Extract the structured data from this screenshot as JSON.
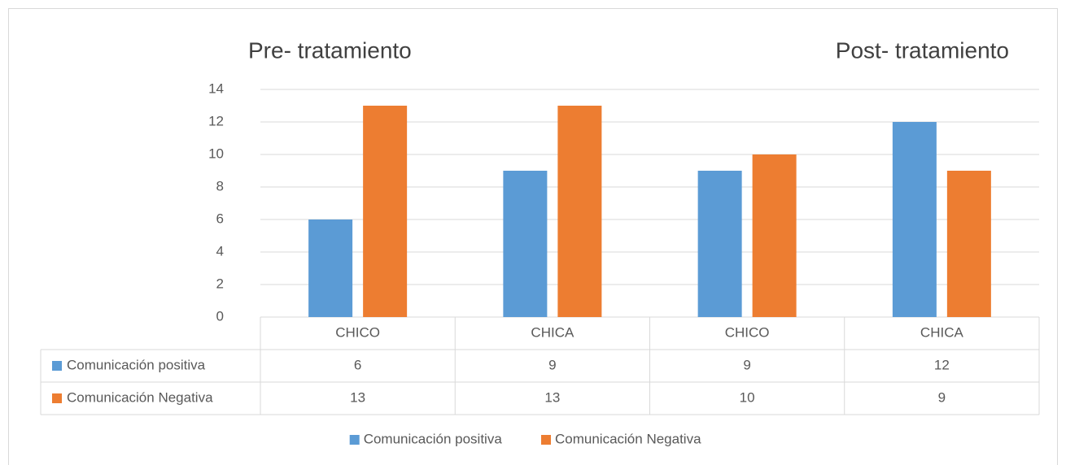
{
  "chart_data": {
    "type": "bar",
    "annotations": [
      "Pre- tratamiento",
      "Post- tratamiento"
    ],
    "categories": [
      "CHICO",
      "CHICA",
      "CHICO",
      "CHICA"
    ],
    "series": [
      {
        "name": "Comunicación positiva",
        "color": "#5b9bd5",
        "values": [
          6,
          9,
          9,
          12
        ]
      },
      {
        "name": "Comunicación Negativa",
        "color": "#ed7d31",
        "values": [
          13,
          13,
          10,
          9
        ]
      }
    ],
    "ylim": [
      0,
      14
    ],
    "yticks": [
      0,
      2,
      4,
      6,
      8,
      10,
      12,
      14
    ],
    "grid": true,
    "legend": "bottom"
  }
}
